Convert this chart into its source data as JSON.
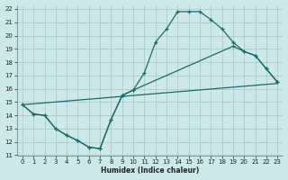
{
  "xlabel": "Humidex (Indice chaleur)",
  "background_color": "#cce8e8",
  "grid_color": "#aacccc",
  "line_color": "#1a6b6b",
  "xlim": [
    -0.5,
    23.5
  ],
  "ylim": [
    11,
    22.3
  ],
  "yticks": [
    11,
    12,
    13,
    14,
    15,
    16,
    17,
    18,
    19,
    20,
    21,
    22
  ],
  "xticks": [
    0,
    1,
    2,
    3,
    4,
    5,
    6,
    7,
    8,
    9,
    10,
    11,
    12,
    13,
    14,
    15,
    16,
    17,
    18,
    19,
    20,
    21,
    22,
    23
  ],
  "curve1_x": [
    0,
    1,
    2,
    3,
    4,
    5,
    6,
    7,
    8,
    9,
    10,
    11,
    12,
    13,
    14,
    15,
    16,
    17,
    18,
    19,
    20,
    21,
    22,
    23
  ],
  "curve1_y": [
    14.8,
    14.1,
    14.0,
    13.0,
    12.5,
    12.1,
    11.6,
    11.5,
    13.7,
    15.5,
    15.9,
    17.2,
    19.5,
    20.5,
    21.8,
    21.8,
    21.8,
    21.2,
    20.5,
    19.5,
    18.8,
    18.5,
    17.5,
    16.5
  ],
  "curve2_x": [
    0,
    1,
    2,
    3,
    4,
    5,
    6,
    7,
    8,
    9,
    10,
    19,
    20,
    21,
    22,
    23
  ],
  "curve2_y": [
    14.8,
    14.1,
    14.0,
    13.0,
    12.5,
    12.1,
    11.6,
    11.5,
    13.7,
    15.5,
    15.9,
    19.2,
    18.8,
    18.5,
    17.5,
    16.5
  ],
  "curve3_x": [
    0,
    23
  ],
  "curve3_y": [
    14.8,
    16.4
  ]
}
